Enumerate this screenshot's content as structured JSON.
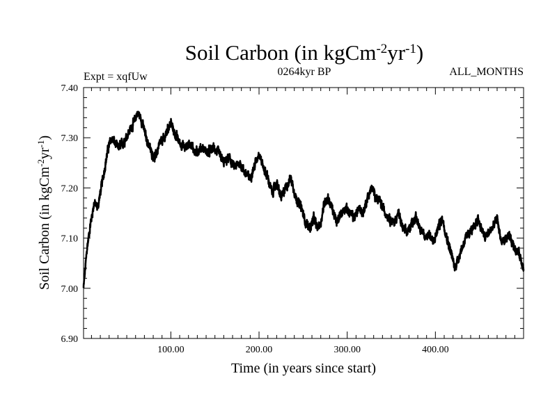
{
  "chart_data": {
    "type": "line",
    "title": "Soil Carbon (in kgCm",
    "title_sup1": "-2",
    "title_mid": "yr",
    "title_sup2": "-1",
    "title_end": ")",
    "subtitle_left": "Expt = xqfUw",
    "subtitle_center": "0264kyr BP",
    "subtitle_right": "ALL_MONTHS",
    "xlabel": "Time (in years since start)",
    "ylabel": "Soil Carbon (in kgCm",
    "ylabel_sup1": "-2",
    "ylabel_mid": "yr",
    "ylabel_sup2": "-1",
    "ylabel_end": ")",
    "xlim": [
      1,
      500
    ],
    "ylim": [
      6.9,
      7.4
    ],
    "x_ticks": [
      100,
      200,
      300,
      400
    ],
    "x_tick_labels": [
      "100.00",
      "200.00",
      "300.00",
      "400.00"
    ],
    "y_ticks": [
      6.9,
      7.0,
      7.1,
      7.2,
      7.3,
      7.4
    ],
    "y_tick_labels": [
      "6.90",
      "7.00",
      "7.10",
      "7.20",
      "7.30",
      "7.40"
    ],
    "grid": false,
    "line_color": "#000000",
    "series": [
      {
        "name": "Soil Carbon",
        "anchors_x": [
          1,
          5,
          9,
          13,
          17,
          21,
          25,
          29,
          33,
          40,
          46,
          52,
          58,
          62,
          66,
          72,
          78,
          82,
          88,
          93,
          97,
          100,
          104,
          110,
          116,
          122,
          128,
          135,
          142,
          148,
          154,
          160,
          166,
          172,
          178,
          184,
          190,
          196,
          200,
          205,
          210,
          215,
          220,
          225,
          230,
          236,
          242,
          248,
          253,
          258,
          262,
          266,
          270,
          274,
          278,
          283,
          288,
          293,
          298,
          303,
          308,
          313,
          318,
          323,
          328,
          333,
          338,
          343,
          348,
          353,
          358,
          363,
          368,
          373,
          378,
          383,
          388,
          393,
          398,
          403,
          408,
          413,
          418,
          422,
          426,
          432,
          438,
          444,
          448,
          452,
          456,
          460,
          465,
          470,
          475,
          480,
          485,
          490,
          495,
          500
        ],
        "anchors_y": [
          7.0,
          7.08,
          7.13,
          7.17,
          7.16,
          7.2,
          7.24,
          7.28,
          7.3,
          7.28,
          7.29,
          7.31,
          7.33,
          7.35,
          7.34,
          7.3,
          7.27,
          7.26,
          7.29,
          7.3,
          7.32,
          7.33,
          7.31,
          7.29,
          7.28,
          7.29,
          7.27,
          7.28,
          7.27,
          7.28,
          7.27,
          7.25,
          7.26,
          7.24,
          7.25,
          7.23,
          7.22,
          7.25,
          7.27,
          7.24,
          7.22,
          7.19,
          7.21,
          7.18,
          7.2,
          7.22,
          7.18,
          7.16,
          7.13,
          7.12,
          7.14,
          7.12,
          7.13,
          7.17,
          7.18,
          7.16,
          7.13,
          7.15,
          7.16,
          7.15,
          7.14,
          7.16,
          7.15,
          7.18,
          7.2,
          7.18,
          7.17,
          7.15,
          7.14,
          7.13,
          7.15,
          7.12,
          7.11,
          7.13,
          7.14,
          7.12,
          7.1,
          7.11,
          7.09,
          7.12,
          7.14,
          7.1,
          7.07,
          7.04,
          7.06,
          7.09,
          7.11,
          7.12,
          7.14,
          7.12,
          7.1,
          7.11,
          7.12,
          7.14,
          7.09,
          7.1,
          7.1,
          7.08,
          7.07,
          7.04
        ]
      }
    ]
  }
}
